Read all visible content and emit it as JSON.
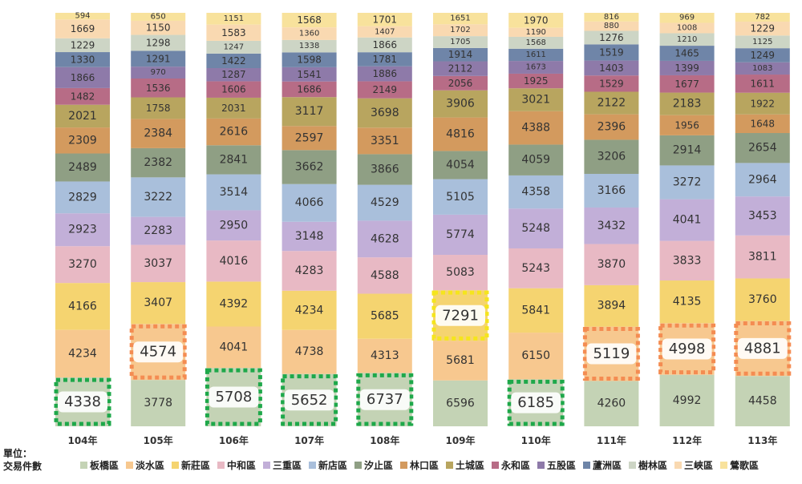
{
  "chart_data": {
    "type": "bar",
    "stacked": true,
    "unit_label": "單位：",
    "unit_value": "交易件數",
    "categories": [
      "104年",
      "105年",
      "106年",
      "107年",
      "108年",
      "109年",
      "110年",
      "111年",
      "112年",
      "113年"
    ],
    "series": [
      {
        "name": "板橋區",
        "color": "#c4d3b5",
        "values": [
          4338,
          3778,
          5708,
          5652,
          6737,
          6596,
          6185,
          4260,
          4992,
          4458
        ]
      },
      {
        "name": "淡水區",
        "color": "#f7c88f",
        "values": [
          4234,
          4574,
          4041,
          4738,
          4313,
          5681,
          6150,
          5119,
          4998,
          4881
        ]
      },
      {
        "name": "新莊區",
        "color": "#f5d470",
        "values": [
          4166,
          3407,
          4392,
          4234,
          5685,
          7291,
          5841,
          3894,
          4135,
          3760
        ]
      },
      {
        "name": "中和區",
        "color": "#e8b9c4",
        "values": [
          3270,
          3037,
          4016,
          4283,
          4588,
          5083,
          5243,
          3870,
          3833,
          3811
        ]
      },
      {
        "name": "三重區",
        "color": "#c2afd8",
        "values": [
          2923,
          2283,
          2950,
          3148,
          4628,
          5774,
          5248,
          3432,
          4041,
          3453
        ]
      },
      {
        "name": "新店區",
        "color": "#a9bfdb",
        "values": [
          2829,
          3222,
          3514,
          4066,
          4529,
          5105,
          4358,
          3166,
          3272,
          2964
        ]
      },
      {
        "name": "汐止區",
        "color": "#8f9f84",
        "values": [
          2489,
          2382,
          2841,
          3662,
          3866,
          4054,
          4059,
          3206,
          2914,
          2654
        ]
      },
      {
        "name": "林口區",
        "color": "#d39a5e",
        "values": [
          2309,
          2384,
          2616,
          2597,
          3351,
          4816,
          4388,
          2396,
          1956,
          1648
        ]
      },
      {
        "name": "土城區",
        "color": "#b8a55f",
        "values": [
          2021,
          1758,
          2031,
          3117,
          3698,
          3906,
          3021,
          2122,
          2183,
          1922
        ]
      },
      {
        "name": "永和區",
        "color": "#b76c86",
        "values": [
          1482,
          1536,
          1606,
          1686,
          2149,
          2056,
          1925,
          1529,
          1677,
          1611
        ]
      },
      {
        "name": "五股區",
        "color": "#8e7aa9",
        "values": [
          1866,
          970,
          1287,
          1541,
          1886,
          2112,
          1673,
          1403,
          1399,
          1083
        ]
      },
      {
        "name": "蘆洲區",
        "color": "#6f85a8",
        "values": [
          1330,
          1291,
          1422,
          1598,
          1781,
          1914,
          1611,
          1519,
          1465,
          1249
        ]
      },
      {
        "name": "樹林區",
        "color": "#cdd5c5",
        "values": [
          1229,
          1298,
          1247,
          1338,
          1866,
          1705,
          1568,
          1276,
          1210,
          1125
        ]
      },
      {
        "name": "三峽區",
        "color": "#f9d9b1",
        "values": [
          1669,
          1150,
          1583,
          1360,
          1407,
          1702,
          1190,
          880,
          1008,
          1229
        ]
      },
      {
        "name": "鶯歌區",
        "color": "#f8e29c",
        "values": [
          594,
          650,
          1151,
          1568,
          1701,
          1651,
          1970,
          816,
          969,
          782
        ]
      }
    ],
    "highlights": [
      {
        "category": 0,
        "series": 0,
        "color": "#1ea84a"
      },
      {
        "category": 2,
        "series": 0,
        "color": "#1ea84a"
      },
      {
        "category": 3,
        "series": 0,
        "color": "#1ea84a"
      },
      {
        "category": 4,
        "series": 0,
        "color": "#1ea84a"
      },
      {
        "category": 6,
        "series": 0,
        "color": "#1ea84a"
      },
      {
        "category": 1,
        "series": 1,
        "color": "#f48c52"
      },
      {
        "category": 7,
        "series": 1,
        "color": "#f48c52"
      },
      {
        "category": 8,
        "series": 1,
        "color": "#f48c52"
      },
      {
        "category": 9,
        "series": 1,
        "color": "#f48c52"
      },
      {
        "category": 5,
        "series": 2,
        "color": "#f5e51c"
      }
    ]
  }
}
